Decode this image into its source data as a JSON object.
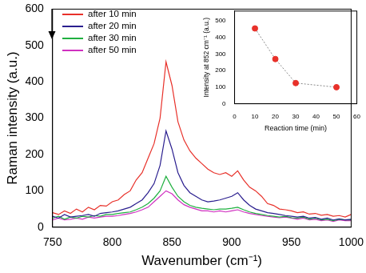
{
  "chart_data": [
    {
      "type": "line",
      "x_label": "Wavenumber (cm⁻¹)",
      "y_label": "Raman intensity (a.u.)",
      "x": [
        750,
        755,
        760,
        765,
        770,
        775,
        780,
        785,
        790,
        795,
        800,
        805,
        810,
        815,
        820,
        825,
        830,
        835,
        840,
        845,
        850,
        855,
        860,
        865,
        870,
        875,
        880,
        885,
        890,
        895,
        900,
        905,
        910,
        915,
        920,
        925,
        930,
        935,
        940,
        945,
        950,
        955,
        960,
        965,
        970,
        975,
        980,
        985,
        990,
        995,
        1000
      ],
      "series": [
        {
          "name": "after 10 min",
          "color": "#e8312a",
          "values": [
            40,
            35,
            45,
            38,
            50,
            42,
            55,
            48,
            60,
            58,
            70,
            75,
            90,
            100,
            130,
            150,
            190,
            230,
            300,
            455,
            390,
            290,
            240,
            210,
            190,
            175,
            160,
            150,
            145,
            150,
            140,
            155,
            130,
            110,
            100,
            85,
            65,
            60,
            50,
            48,
            45,
            40,
            42,
            36,
            38,
            33,
            35,
            30,
            32,
            28,
            35
          ]
        },
        {
          "name": "after 20 min",
          "color": "#2b1f8f",
          "values": [
            30,
            25,
            35,
            28,
            30,
            32,
            35,
            30,
            38,
            40,
            42,
            45,
            50,
            55,
            65,
            75,
            95,
            120,
            170,
            265,
            215,
            150,
            115,
            95,
            85,
            75,
            70,
            72,
            75,
            80,
            85,
            95,
            75,
            60,
            50,
            45,
            40,
            38,
            35,
            32,
            30,
            28,
            30,
            25,
            27,
            22,
            25,
            20,
            23,
            20,
            22
          ]
        },
        {
          "name": "after 30 min",
          "color": "#20b040",
          "values": [
            25,
            30,
            22,
            28,
            25,
            30,
            28,
            32,
            30,
            35,
            35,
            38,
            40,
            42,
            48,
            55,
            65,
            80,
            100,
            140,
            110,
            85,
            70,
            60,
            55,
            52,
            50,
            48,
            50,
            50,
            52,
            55,
            48,
            42,
            38,
            35,
            32,
            30,
            28,
            30,
            26,
            25,
            28,
            22,
            25,
            20,
            22,
            18,
            22,
            20,
            20
          ]
        },
        {
          "name": "after 50 min",
          "color": "#d030c0",
          "values": [
            20,
            25,
            20,
            22,
            25,
            22,
            28,
            25,
            28,
            30,
            30,
            32,
            35,
            38,
            42,
            48,
            55,
            70,
            85,
            100,
            92,
            75,
            62,
            55,
            50,
            45,
            45,
            42,
            45,
            42,
            45,
            48,
            42,
            38,
            35,
            32,
            30,
            28,
            26,
            28,
            25,
            22,
            25,
            20,
            22,
            18,
            20,
            16,
            20,
            18,
            18
          ]
        }
      ],
      "xlim": [
        750,
        1000
      ],
      "xticks": [
        750,
        800,
        850,
        900,
        950,
        1000
      ],
      "ylim": [
        0,
        600
      ],
      "yticks": [
        0,
        100,
        200,
        300,
        400,
        500,
        600
      ],
      "grid": false,
      "legend": "upper left"
    },
    {
      "type": "line",
      "x_label": "Reaction time (min)",
      "y_label": "Intensity at 852 cm⁻¹ (a.u.)",
      "x": [
        10,
        20,
        30,
        50
      ],
      "series": [
        {
          "color": "#e8312a",
          "marker": "circle",
          "line_style": "dotted",
          "values": [
            455,
            270,
            125,
            100
          ]
        }
      ],
      "xlim": [
        0,
        60
      ],
      "xticks": [
        0,
        10,
        20,
        30,
        40,
        50,
        60
      ],
      "ylim": [
        0,
        560
      ],
      "yticks": [
        0,
        100,
        200,
        300,
        400,
        500
      ],
      "grid": false
    }
  ]
}
